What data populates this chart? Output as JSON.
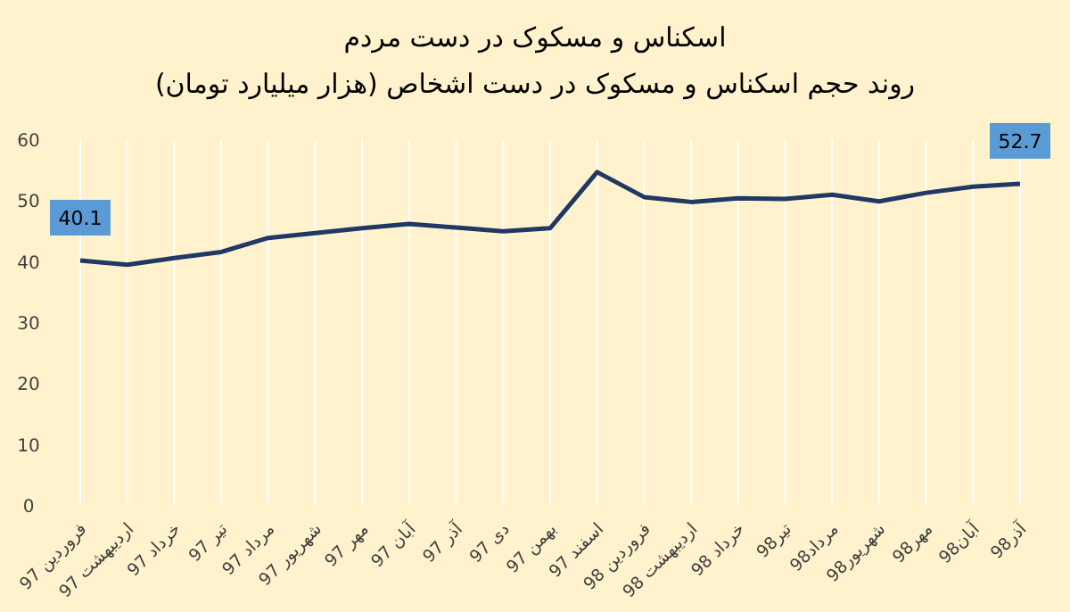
{
  "chart_data": {
    "type": "line",
    "title": "اسکناس و مسکوک در دست مردم",
    "subtitle": "روند حجم اسکناس و مسکوک در دست اشخاص (هزار میلیارد تومان)",
    "categories": [
      "فروردین 97",
      "اردیبهشت 97",
      "خرداد 97",
      "تیر 97",
      "مرداد 97",
      "شهریور 97",
      "مهر 97",
      "آبان 97",
      "آذر 97",
      "دی 97",
      "بهمن 97",
      "اسفند 97",
      "فروردین 98",
      "اردیبهشت 98",
      "خرداد 98",
      "تیر98",
      "مرداد98",
      "شهریور98",
      "مهر98",
      "آبان98",
      "آذر98"
    ],
    "series": [
      {
        "color": "#1f3864",
        "values": [
          40.1,
          39.4,
          40.5,
          41.5,
          43.8,
          44.6,
          45.4,
          46.1,
          45.5,
          44.9,
          45.4,
          54.6,
          50.5,
          49.7,
          50.3,
          50.2,
          50.9,
          49.8,
          51.2,
          52.2,
          52.7
        ],
        "value_labels": [
          "40.1",
          null,
          null,
          null,
          null,
          null,
          null,
          null,
          null,
          null,
          null,
          null,
          null,
          null,
          null,
          null,
          null,
          null,
          null,
          null,
          "52.7"
        ]
      }
    ],
    "ylim": [
      0,
      60
    ],
    "yticks": [
      0,
      10,
      20,
      30,
      40,
      50,
      60
    ],
    "grid": "x",
    "marker": "none",
    "line_style": "solid"
  }
}
